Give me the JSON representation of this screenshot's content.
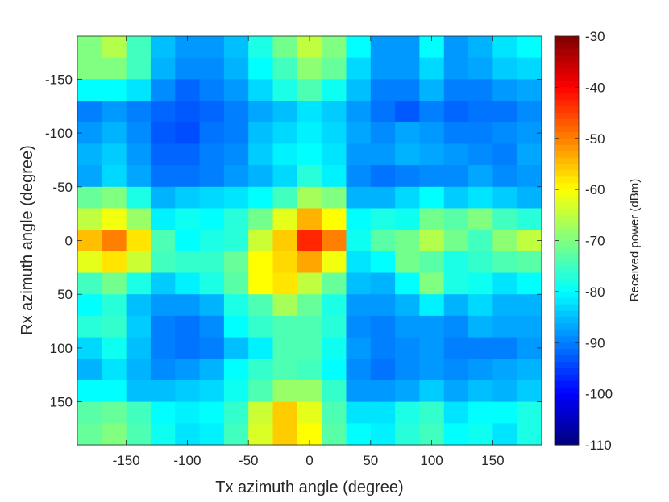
{
  "chart_data": {
    "type": "heatmap",
    "title": "",
    "xlabel": "Tx azimuth angle (degree)",
    "ylabel": "Rx azimuth angle (degree)",
    "colorbar_label": "Received power (dBm)",
    "colormap": "jet",
    "clim": [
      -110,
      -30
    ],
    "x": [
      -180,
      -160,
      -140,
      -120,
      -100,
      -80,
      -60,
      -40,
      -20,
      0,
      20,
      40,
      60,
      80,
      100,
      120,
      140,
      160,
      180
    ],
    "y": [
      -180,
      -160,
      -140,
      -120,
      -100,
      -80,
      -60,
      -40,
      -20,
      0,
      20,
      40,
      60,
      80,
      100,
      120,
      140,
      160,
      180
    ],
    "xlim": [
      -190,
      190
    ],
    "ylim": [
      -190,
      190
    ],
    "y_direction": "reverse",
    "x_ticks": [
      -150,
      -100,
      -50,
      0,
      50,
      100,
      150
    ],
    "x_tick_labels": [
      "-150",
      "-100",
      "-50",
      "0",
      "50",
      "100",
      "150"
    ],
    "y_ticks": [
      -150,
      -100,
      -50,
      0,
      50,
      100,
      150
    ],
    "y_tick_labels": [
      "-150",
      "-100",
      "-50",
      "0",
      "50",
      "100",
      "150"
    ],
    "colorbar_ticks": [
      -30,
      -40,
      -50,
      -60,
      -70,
      -80,
      -90,
      -100,
      -110
    ],
    "colorbar_tick_labels": [
      "-30",
      "-40",
      "-50",
      "-60",
      "-70",
      "-80",
      "-90",
      "-100",
      "-110"
    ],
    "values": [
      [
        -70,
        -66,
        -75,
        -85,
        -88,
        -88,
        -85,
        -78,
        -71,
        -65,
        -70,
        -80,
        -88,
        -88,
        -80,
        -88,
        -86,
        -82,
        -80
      ],
      [
        -70,
        -70,
        -75,
        -86,
        -89,
        -89,
        -86,
        -80,
        -75,
        -69,
        -72,
        -83,
        -88,
        -88,
        -83,
        -88,
        -87,
        -84,
        -83
      ],
      [
        -80,
        -80,
        -82,
        -89,
        -92,
        -90,
        -88,
        -83,
        -78,
        -74,
        -79,
        -85,
        -90,
        -90,
        -86,
        -90,
        -90,
        -88,
        -87
      ],
      [
        -90,
        -88,
        -90,
        -92,
        -93,
        -92,
        -90,
        -87,
        -85,
        -82,
        -84,
        -88,
        -91,
        -93,
        -90,
        -92,
        -91,
        -91,
        -89
      ],
      [
        -88,
        -86,
        -89,
        -93,
        -94,
        -91,
        -90,
        -85,
        -83,
        -81,
        -83,
        -87,
        -89,
        -87,
        -88,
        -90,
        -90,
        -89,
        -88
      ],
      [
        -86,
        -84,
        -88,
        -92,
        -92,
        -90,
        -89,
        -84,
        -81,
        -80,
        -82,
        -88,
        -88,
        -86,
        -87,
        -88,
        -89,
        -90,
        -87
      ],
      [
        -87,
        -83,
        -87,
        -91,
        -91,
        -90,
        -88,
        -86,
        -83,
        -77,
        -81,
        -89,
        -91,
        -90,
        -89,
        -89,
        -87,
        -89,
        -88
      ],
      [
        -72,
        -70,
        -78,
        -86,
        -84,
        -83,
        -82,
        -80,
        -75,
        -67,
        -70,
        -86,
        -86,
        -83,
        -80,
        -84,
        -82,
        -84,
        -86
      ],
      [
        -65,
        -61,
        -68,
        -81,
        -79,
        -80,
        -77,
        -71,
        -62,
        -54,
        -60,
        -80,
        -78,
        -79,
        -71,
        -73,
        -70,
        -75,
        -77
      ],
      [
        -55,
        -50,
        -58,
        -74,
        -80,
        -78,
        -77,
        -64,
        -56,
        -43,
        -50,
        -79,
        -73,
        -71,
        -66,
        -71,
        -75,
        -69,
        -65
      ],
      [
        -62,
        -58,
        -64,
        -75,
        -76,
        -76,
        -72,
        -60,
        -57,
        -53,
        -61,
        -82,
        -80,
        -71,
        -73,
        -78,
        -76,
        -74,
        -73
      ],
      [
        -75,
        -71,
        -78,
        -84,
        -81,
        -78,
        -73,
        -60,
        -58,
        -65,
        -72,
        -85,
        -86,
        -80,
        -70,
        -78,
        -79,
        -82,
        -80
      ],
      [
        -80,
        -77,
        -85,
        -88,
        -88,
        -86,
        -78,
        -74,
        -67,
        -72,
        -78,
        -88,
        -88,
        -86,
        -81,
        -86,
        -83,
        -86,
        -86
      ],
      [
        -77,
        -76,
        -84,
        -90,
        -91,
        -89,
        -80,
        -76,
        -74,
        -74,
        -77,
        -89,
        -90,
        -88,
        -88,
        -89,
        -86,
        -87,
        -87
      ],
      [
        -83,
        -79,
        -85,
        -90,
        -91,
        -90,
        -85,
        -81,
        -74,
        -74,
        -79,
        -88,
        -90,
        -89,
        -88,
        -90,
        -90,
        -90,
        -88
      ],
      [
        -86,
        -82,
        -86,
        -89,
        -88,
        -86,
        -80,
        -76,
        -74,
        -75,
        -80,
        -89,
        -91,
        -89,
        -88,
        -89,
        -88,
        -87,
        -86
      ],
      [
        -80,
        -80,
        -85,
        -85,
        -84,
        -83,
        -79,
        -74,
        -68,
        -68,
        -76,
        -88,
        -88,
        -87,
        -84,
        -87,
        -85,
        -86,
        -84
      ],
      [
        -73,
        -72,
        -75,
        -80,
        -81,
        -80,
        -76,
        -64,
        -56,
        -62,
        -74,
        -82,
        -82,
        -78,
        -76,
        -82,
        -80,
        -80,
        -78
      ],
      [
        -72,
        -70,
        -74,
        -79,
        -82,
        -81,
        -75,
        -63,
        -56,
        -60,
        -73,
        -80,
        -81,
        -77,
        -75,
        -80,
        -79,
        -82,
        -78
      ]
    ]
  }
}
